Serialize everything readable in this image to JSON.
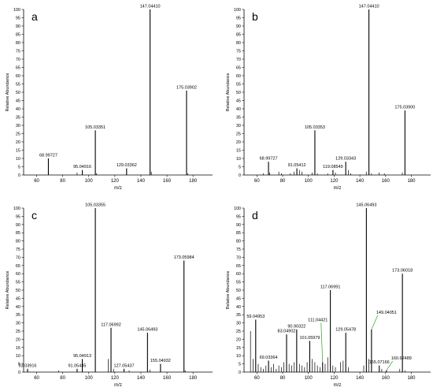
{
  "chart_data": [
    {
      "type": "bar",
      "panel_label": "a",
      "xlabel": "m/z",
      "ylabel": "Relative Abundance",
      "xlim": [
        50,
        195
      ],
      "ylim": [
        0,
        100
      ],
      "xticks": [
        60,
        80,
        100,
        120,
        140,
        160,
        180
      ],
      "yticks": [
        0,
        5,
        10,
        15,
        20,
        25,
        30,
        35,
        40,
        45,
        50,
        55,
        60,
        65,
        70,
        75,
        80,
        85,
        90,
        95,
        100
      ],
      "peaks": [
        {
          "x": 68.99727,
          "y": 10,
          "label": "68.99727"
        },
        {
          "x": 95.04916,
          "y": 3,
          "label": "95.04916"
        },
        {
          "x": 105.03351,
          "y": 27,
          "label": "105.03351"
        },
        {
          "x": 129.03362,
          "y": 4,
          "label": "129.03362"
        },
        {
          "x": 147.0441,
          "y": 100,
          "label": "147.04410"
        },
        {
          "x": 175.03902,
          "y": 51,
          "label": "175.03902"
        }
      ],
      "minor_peaks": [
        {
          "x": 91.05,
          "y": 1.5
        },
        {
          "x": 106.0,
          "y": 1
        },
        {
          "x": 148.0,
          "y": 2
        },
        {
          "x": 176.0,
          "y": 1
        }
      ]
    },
    {
      "type": "bar",
      "panel_label": "b",
      "xlabel": "m/z",
      "ylabel": "Relative Abundance",
      "xlim": [
        50,
        195
      ],
      "ylim": [
        0,
        100
      ],
      "xticks": [
        60,
        80,
        100,
        120,
        140,
        160,
        180
      ],
      "yticks": [
        0,
        5,
        10,
        15,
        20,
        25,
        30,
        35,
        40,
        45,
        50,
        55,
        60,
        65,
        70,
        75,
        80,
        85,
        90,
        95,
        100
      ],
      "peaks": [
        {
          "x": 68.99727,
          "y": 8,
          "label": "68.99727"
        },
        {
          "x": 91.05412,
          "y": 4,
          "label": "91.05412"
        },
        {
          "x": 105.03353,
          "y": 27,
          "label": "105.03353"
        },
        {
          "x": 119.08549,
          "y": 3,
          "label": "119.08549"
        },
        {
          "x": 129.03343,
          "y": 8,
          "label": "129.03343"
        },
        {
          "x": 147.0441,
          "y": 100,
          "label": "147.04410"
        },
        {
          "x": 175.039,
          "y": 39,
          "label": "175.03900"
        }
      ],
      "minor_peaks": [
        {
          "x": 65.0,
          "y": 1
        },
        {
          "x": 70.0,
          "y": 1.5
        },
        {
          "x": 77.0,
          "y": 2
        },
        {
          "x": 79.0,
          "y": 1
        },
        {
          "x": 86.0,
          "y": 1
        },
        {
          "x": 89.0,
          "y": 2
        },
        {
          "x": 93.0,
          "y": 3
        },
        {
          "x": 95.0,
          "y": 2
        },
        {
          "x": 103.0,
          "y": 1.5
        },
        {
          "x": 107.0,
          "y": 1
        },
        {
          "x": 115.0,
          "y": 1
        },
        {
          "x": 121.0,
          "y": 1.5
        },
        {
          "x": 131.0,
          "y": 3
        },
        {
          "x": 133.0,
          "y": 1
        },
        {
          "x": 145.0,
          "y": 2
        },
        {
          "x": 149.0,
          "y": 1
        },
        {
          "x": 155.0,
          "y": 1.5
        },
        {
          "x": 159.0,
          "y": 1
        },
        {
          "x": 173.0,
          "y": 1.5
        }
      ]
    },
    {
      "type": "bar",
      "panel_label": "c",
      "xlabel": "m/z",
      "ylabel": "Relative Abundance",
      "xlim": [
        50,
        195
      ],
      "ylim": [
        0,
        100
      ],
      "xticks": [
        60,
        80,
        100,
        120,
        140,
        160,
        180
      ],
      "yticks": [
        0,
        5,
        10,
        15,
        20,
        25,
        30,
        35,
        40,
        45,
        50,
        55,
        60,
        65,
        70,
        75,
        80,
        85,
        90,
        95,
        100
      ],
      "peaks": [
        {
          "x": 53.03916,
          "y": 2,
          "label": "53.03916"
        },
        {
          "x": 91.05435,
          "y": 2,
          "label": "91.05435"
        },
        {
          "x": 95.04913,
          "y": 8,
          "label": "95.04913"
        },
        {
          "x": 105.03355,
          "y": 100,
          "label": "105.03355"
        },
        {
          "x": 117.06992,
          "y": 27,
          "label": "117.06992"
        },
        {
          "x": 127.05437,
          "y": 2,
          "label": "127.05437"
        },
        {
          "x": 145.06493,
          "y": 24,
          "label": "145.06493"
        },
        {
          "x": 155.04932,
          "y": 5,
          "label": "155.04932"
        },
        {
          "x": 173.05984,
          "y": 68,
          "label": "173.05984"
        }
      ],
      "minor_peaks": [
        {
          "x": 77.0,
          "y": 1
        },
        {
          "x": 115.0,
          "y": 8
        },
        {
          "x": 119.0,
          "y": 2
        },
        {
          "x": 131.0,
          "y": 1
        },
        {
          "x": 147.0,
          "y": 1.5
        },
        {
          "x": 174.0,
          "y": 1
        }
      ]
    },
    {
      "type": "bar",
      "panel_label": "d",
      "xlabel": "m/z",
      "ylabel": "Relative Abundance",
      "xlim": [
        50,
        195
      ],
      "ylim": [
        0,
        100
      ],
      "xticks": [
        60,
        80,
        100,
        120,
        140,
        160,
        180
      ],
      "yticks": [
        0,
        5,
        10,
        15,
        20,
        25,
        30,
        35,
        40,
        45,
        50,
        55,
        60,
        65,
        70,
        75,
        80,
        85,
        90,
        95,
        100
      ],
      "peaks": [
        {
          "x": 59.04953,
          "y": 32,
          "label": "59.04953"
        },
        {
          "x": 69.03364,
          "y": 7,
          "label": "69.03364"
        },
        {
          "x": 83.04902,
          "y": 23,
          "label": "83.04902"
        },
        {
          "x": 90.90322,
          "y": 26,
          "label": "90.90322"
        },
        {
          "x": 101.05979,
          "y": 19,
          "label": "101.05979"
        },
        {
          "x": 111.04421,
          "y": 6,
          "label": "111.04421"
        },
        {
          "x": 117.06991,
          "y": 50,
          "label": "117.06991"
        },
        {
          "x": 129.05478,
          "y": 24,
          "label": "129.05478"
        },
        {
          "x": 145.06493,
          "y": 100,
          "label": "145.06493"
        },
        {
          "x": 149.04051,
          "y": 26,
          "label": "149.04051"
        },
        {
          "x": 155.07166,
          "y": 4,
          "label": "155.07166"
        },
        {
          "x": 160.62489,
          "y": 1,
          "label": "160.62489"
        },
        {
          "x": 173.06018,
          "y": 60,
          "label": "173.06018"
        }
      ],
      "minor_peaks": [
        {
          "x": 55.0,
          "y": 25
        },
        {
          "x": 57.0,
          "y": 8
        },
        {
          "x": 61.0,
          "y": 5
        },
        {
          "x": 63.0,
          "y": 3
        },
        {
          "x": 65.0,
          "y": 2
        },
        {
          "x": 67.0,
          "y": 4
        },
        {
          "x": 71.0,
          "y": 3
        },
        {
          "x": 73.0,
          "y": 5
        },
        {
          "x": 75.0,
          "y": 2
        },
        {
          "x": 77.0,
          "y": 4
        },
        {
          "x": 79.0,
          "y": 3
        },
        {
          "x": 81.0,
          "y": 6
        },
        {
          "x": 85.0,
          "y": 5
        },
        {
          "x": 87.0,
          "y": 4
        },
        {
          "x": 89.0,
          "y": 6
        },
        {
          "x": 93.0,
          "y": 5
        },
        {
          "x": 95.0,
          "y": 4
        },
        {
          "x": 97.0,
          "y": 3
        },
        {
          "x": 99.0,
          "y": 6
        },
        {
          "x": 103.0,
          "y": 8
        },
        {
          "x": 105.0,
          "y": 6
        },
        {
          "x": 107.0,
          "y": 4
        },
        {
          "x": 109.0,
          "y": 3
        },
        {
          "x": 113.0,
          "y": 5
        },
        {
          "x": 115.0,
          "y": 9
        },
        {
          "x": 119.0,
          "y": 4
        },
        {
          "x": 121.0,
          "y": 3
        },
        {
          "x": 125.0,
          "y": 6
        },
        {
          "x": 127.0,
          "y": 7
        },
        {
          "x": 131.0,
          "y": 3
        },
        {
          "x": 143.0,
          "y": 4
        },
        {
          "x": 147.0,
          "y": 8
        },
        {
          "x": 157.0,
          "y": 2
        },
        {
          "x": 171.0,
          "y": 2
        },
        {
          "x": 175.0,
          "y": 1
        }
      ],
      "label_callouts": [
        "111.04421",
        "149.04051",
        "160.62489"
      ]
    }
  ]
}
